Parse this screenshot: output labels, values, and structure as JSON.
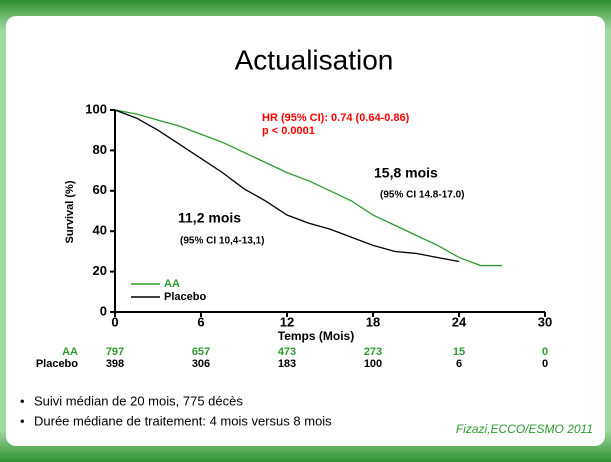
{
  "title": "Actualisation",
  "chart_data": {
    "type": "line",
    "xlabel": "Temps (Mois)",
    "ylabel": "Survival (%)",
    "x": [
      0,
      1.5,
      3,
      4.5,
      6,
      7.5,
      9,
      10.5,
      12,
      13.5,
      15,
      16.5,
      18,
      19.5,
      21,
      22.5,
      24,
      25.5,
      27
    ],
    "xlim": [
      0,
      30
    ],
    "xticks": [
      0,
      6,
      12,
      18,
      24,
      30
    ],
    "ylim": [
      0,
      100
    ],
    "yticks": [
      0,
      20,
      40,
      60,
      80,
      100
    ],
    "series": [
      {
        "name": "AA",
        "color": "#2e9a2e",
        "values": [
          100,
          98,
          95,
          92,
          88,
          84,
          79,
          74,
          69,
          65,
          60,
          55,
          48,
          43,
          38,
          33,
          27,
          23,
          23
        ]
      },
      {
        "name": "Placebo",
        "color": "#000000",
        "values": [
          100,
          96,
          90,
          83,
          76,
          69,
          61,
          55,
          48,
          44,
          41,
          37,
          33,
          30,
          29,
          27,
          25,
          null,
          null
        ]
      }
    ],
    "legend": "lower left",
    "annotations": [
      {
        "text": "HR (95% CI): 0.74 (0.64-0.86)",
        "color": "#ff0000"
      },
      {
        "text": "p < 0.0001",
        "color": "#ff0000"
      },
      {
        "text": "15,8 mois",
        "color": "#000000"
      },
      {
        "text": "(95% CI 14.8-17.0)",
        "color": "#000000"
      },
      {
        "text": "11,2 mois",
        "color": "#000000"
      },
      {
        "text": "(95% CI 10,4-13,1)",
        "color": "#000000"
      }
    ],
    "at_risk": [
      {
        "name": "AA",
        "color": "#2e9a2e",
        "values": [
          797,
          657,
          473,
          273,
          15,
          0
        ]
      },
      {
        "name": "Placebo",
        "color": "#000000",
        "values": [
          398,
          306,
          183,
          100,
          6,
          0
        ]
      }
    ]
  },
  "bullets": [
    "Suivi médian de 20 mois, 775 décès",
    "Durée médiane de traitement: 4 mois versus 8 mois"
  ],
  "citation": "Fizazi,ECCO/ESMO 2011"
}
